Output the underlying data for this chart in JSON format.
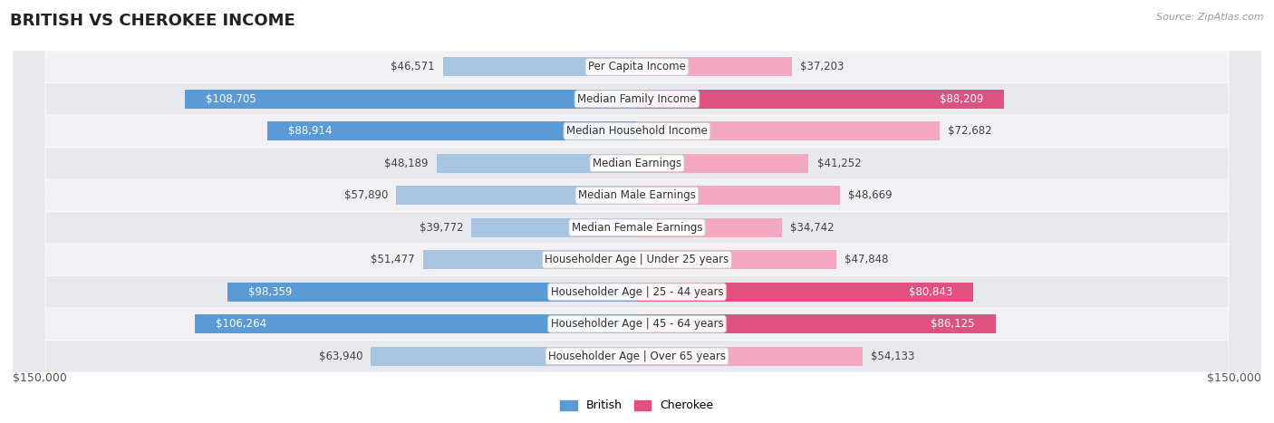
{
  "title": "BRITISH VS CHEROKEE INCOME",
  "source": "Source: ZipAtlas.com",
  "categories": [
    "Per Capita Income",
    "Median Family Income",
    "Median Household Income",
    "Median Earnings",
    "Median Male Earnings",
    "Median Female Earnings",
    "Householder Age | Under 25 years",
    "Householder Age | 25 - 44 years",
    "Householder Age | 45 - 64 years",
    "Householder Age | Over 65 years"
  ],
  "british_values": [
    46571,
    108705,
    88914,
    48189,
    57890,
    39772,
    51477,
    98359,
    106264,
    63940
  ],
  "cherokee_values": [
    37203,
    88209,
    72682,
    41252,
    48669,
    34742,
    47848,
    80843,
    86125,
    54133
  ],
  "max_value": 150000,
  "british_color_light": "#a8c4e0",
  "british_color_dark": "#5b9bd5",
  "cherokee_color_light": "#f4a7c0",
  "cherokee_color_dark": "#e05080",
  "british_label": "British",
  "cherokee_label": "Cherokee",
  "british_dark_threshold": 80000,
  "cherokee_dark_threshold": 80000,
  "title_fontsize": 13,
  "cat_fontsize": 8.5,
  "value_fontsize": 8.5,
  "source_fontsize": 8,
  "axis_label_fontsize": 9,
  "axis_label": "$150,000",
  "row_bg_colors": [
    "#f0f0f5",
    "#e8e8ef"
  ],
  "bar_height": 0.6
}
